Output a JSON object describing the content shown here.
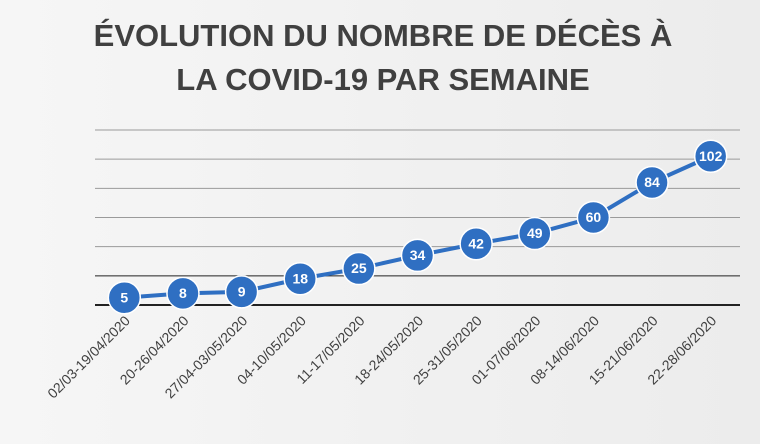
{
  "chart_data": {
    "type": "line",
    "title": [
      "ÉVOLUTION DU NOMBRE DE DÉCÈS À",
      "LA COVID-19 PAR SEMAINE"
    ],
    "categories": [
      "02/03-19/04/2020",
      "20-26/04/2020",
      "27/04-03/05/2020",
      "04-10/05/2020",
      "11-17/05/2020",
      "18-24/05/2020",
      "25-31/05/2020",
      "01-07/06/2020",
      "08-14/06/2020",
      "15-21/06/2020",
      "22-28/06/2020"
    ],
    "values": [
      5,
      8,
      9,
      18,
      25,
      34,
      42,
      49,
      60,
      84,
      102
    ],
    "color": "#2f6fc2",
    "ylim": [
      0,
      120
    ],
    "yticks": [
      0,
      20,
      40,
      60,
      80,
      100,
      120
    ],
    "grid": true
  }
}
